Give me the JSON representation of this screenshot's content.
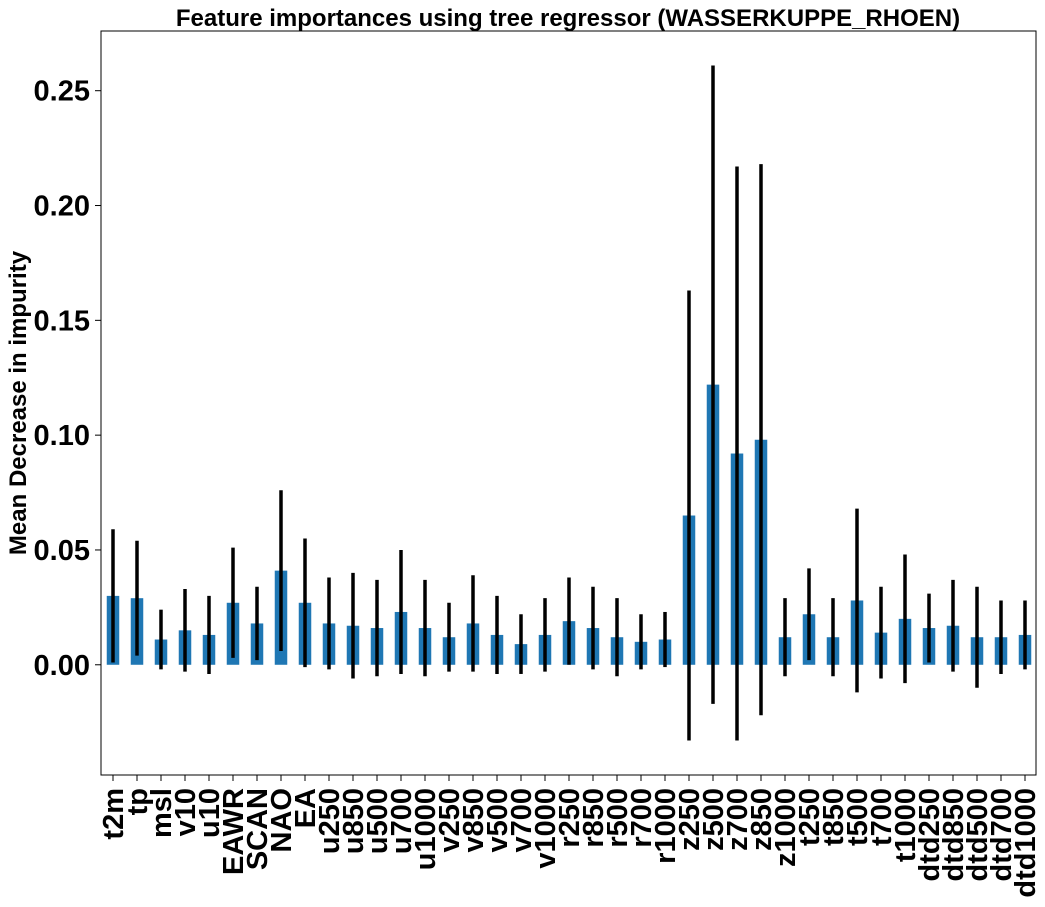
{
  "chart_data": {
    "type": "bar",
    "title": "Feature importances using tree regressor (WASSERKUPPE_RHOEN)",
    "xlabel": "",
    "ylabel": "Mean Decrease in impurity",
    "ylim": [
      -0.048,
      0.276
    ],
    "yticks": [
      "0.00",
      "0.05",
      "0.10",
      "0.15",
      "0.20",
      "0.25"
    ],
    "grid": false,
    "bar_color": "#1f77b4",
    "error_color": "#000000",
    "categories": [
      "t2m",
      "tp",
      "msl",
      "v10",
      "u10",
      "EAWR",
      "SCAN",
      "NAO",
      "EA",
      "u250",
      "u850",
      "u500",
      "u700",
      "u1000",
      "v250",
      "v850",
      "v500",
      "v700",
      "v1000",
      "r250",
      "r850",
      "r500",
      "r700",
      "r1000",
      "z250",
      "z500",
      "z700",
      "z850",
      "z1000",
      "t250",
      "t850",
      "t500",
      "t700",
      "t1000",
      "dtd250",
      "dtd850",
      "dtd500",
      "dtd700",
      "dtd1000"
    ],
    "values": [
      0.03,
      0.029,
      0.011,
      0.015,
      0.013,
      0.027,
      0.018,
      0.041,
      0.027,
      0.018,
      0.017,
      0.016,
      0.023,
      0.016,
      0.012,
      0.018,
      0.013,
      0.009,
      0.013,
      0.019,
      0.016,
      0.012,
      0.01,
      0.011,
      0.065,
      0.122,
      0.092,
      0.098,
      0.012,
      0.022,
      0.012,
      0.028,
      0.014,
      0.02,
      0.016,
      0.017,
      0.012,
      0.012,
      0.013
    ],
    "errors": [
      0.029,
      0.025,
      0.013,
      0.018,
      0.017,
      0.024,
      0.016,
      0.035,
      0.028,
      0.02,
      0.023,
      0.021,
      0.027,
      0.021,
      0.015,
      0.021,
      0.017,
      0.013,
      0.016,
      0.019,
      0.018,
      0.017,
      0.012,
      0.012,
      0.098,
      0.139,
      0.125,
      0.12,
      0.017,
      0.02,
      0.017,
      0.04,
      0.02,
      0.028,
      0.015,
      0.02,
      0.022,
      0.016,
      0.015
    ]
  }
}
